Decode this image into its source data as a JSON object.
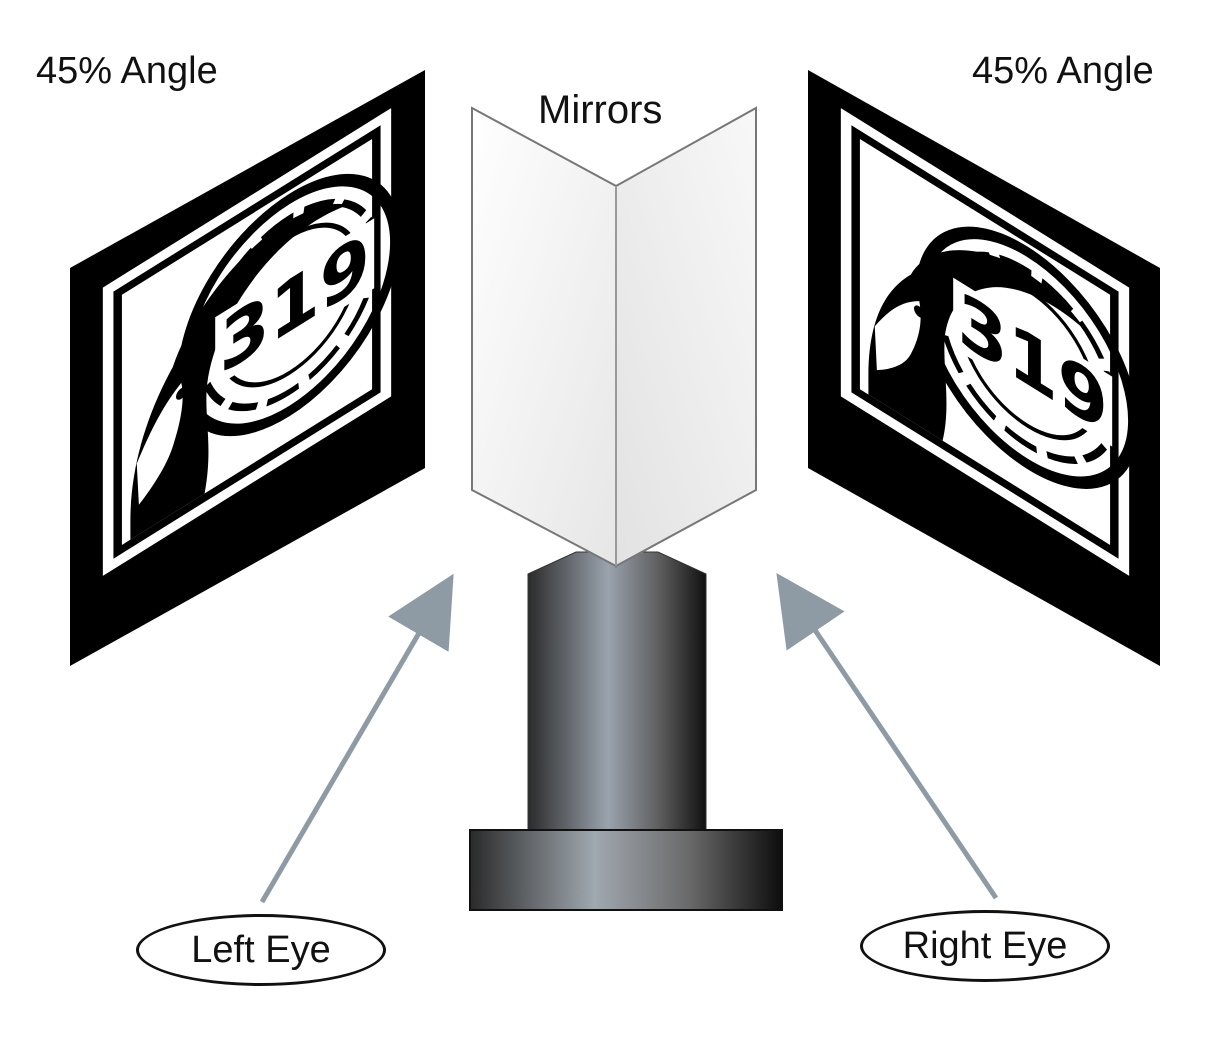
{
  "labels": {
    "angle_left": "45% Angle",
    "angle_right": "45% Angle",
    "mirrors": "Mirrors",
    "left_eye": "Left Eye",
    "right_eye": "Right Eye"
  },
  "logo": {
    "text": "319",
    "icon": "chimpanzee-head-logo"
  },
  "colors": {
    "arrow": "#8e9aa4",
    "frame": "#000000",
    "mirror_face": "#f4f4f4",
    "pillar_dark": "#1a1a1a",
    "pillar_light": "#9aa0a8"
  }
}
